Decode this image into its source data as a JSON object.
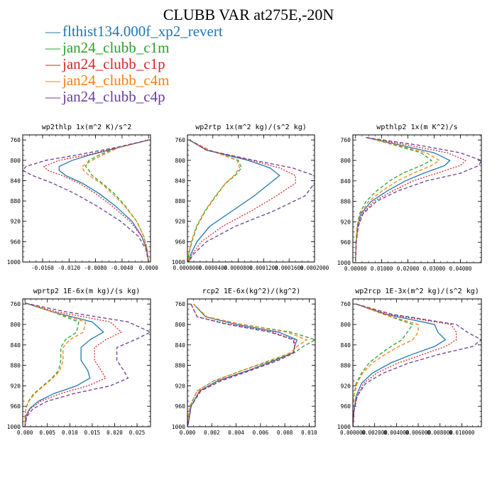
{
  "title": "CLUBB VAR at275E,-20N",
  "colors": {
    "frame": "#000000",
    "background": "#ffffff"
  },
  "legend": [
    {
      "label": "flthist134.000f_xp2_revert",
      "color": "#1f77b4",
      "dash": "solid"
    },
    {
      "label": "jan24_clubb_c1m",
      "color": "#2ca02c",
      "dash": "dashed"
    },
    {
      "label": "jan24_clubb_c1p",
      "color": "#d62728",
      "dash": "dotted"
    },
    {
      "label": "jan24_clubb_c4m",
      "color": "#ff7f0e",
      "dash": "dashed"
    },
    {
      "label": "jan24_clubb_c4p",
      "color": "#6a3d9a",
      "dash": "dashed"
    }
  ],
  "chart_data": [
    {
      "type": "line",
      "title": "wp2thlp  1x(m^2 K)/s^2",
      "ylim": [
        1000,
        750
      ],
      "yticks": [
        760,
        800,
        840,
        880,
        920,
        960,
        1000
      ],
      "xlim": [
        -0.019,
        0.0003
      ],
      "xticks": [
        -0.016,
        -0.012,
        -0.008,
        -0.004,
        0.0
      ],
      "xtick_labels": [
        "-0.0160",
        "-0.0120",
        "-0.0080",
        "-0.0040",
        "0.0000"
      ],
      "y": [
        760,
        775,
        790,
        800,
        812,
        820,
        830,
        845,
        865,
        890,
        920,
        950,
        975,
        1000
      ],
      "series": [
        {
          "values": [
            0.0,
            -0.0045,
            -0.009,
            -0.0115,
            -0.0135,
            -0.0135,
            -0.0125,
            -0.01,
            -0.0075,
            -0.005,
            -0.0025,
            -0.001,
            -0.0003,
            0.0
          ]
        },
        {
          "values": [
            0.0,
            -0.0048,
            -0.0075,
            -0.009,
            -0.0095,
            -0.009,
            -0.0085,
            -0.007,
            -0.0052,
            -0.0035,
            -0.0018,
            -0.0007,
            -0.0002,
            0.0
          ]
        },
        {
          "values": [
            0.0,
            -0.0046,
            -0.0095,
            -0.0135,
            -0.0158,
            -0.0152,
            -0.013,
            -0.0105,
            -0.008,
            -0.0055,
            -0.0028,
            -0.001,
            -0.0003,
            0.0
          ]
        },
        {
          "values": [
            0.0,
            -0.0045,
            -0.007,
            -0.0085,
            -0.01,
            -0.0098,
            -0.009,
            -0.0072,
            -0.0055,
            -0.0036,
            -0.0018,
            -0.0007,
            -0.0002,
            0.0
          ]
        },
        {
          "values": [
            0.0,
            -0.005,
            -0.011,
            -0.0155,
            -0.0185,
            -0.019,
            -0.0175,
            -0.0145,
            -0.0112,
            -0.0078,
            -0.0042,
            -0.0015,
            -0.0004,
            0.0
          ]
        }
      ]
    },
    {
      "type": "line",
      "title": "wp2rtp  1x(m^2 kg)/(s^2 kg)",
      "ylim": [
        1000,
        750
      ],
      "yticks": [
        760,
        800,
        840,
        880,
        920,
        960,
        1000
      ],
      "xlim": [
        0,
        0.0002
      ],
      "xticks": [
        0.0,
        4e-05,
        8e-05,
        0.00012,
        0.00016,
        0.0002
      ],
      "xtick_labels": [
        "0.0000000",
        "0.0000400",
        "0.0000800",
        "0.0001200",
        "0.0001600",
        "0.0002000"
      ],
      "y": [
        760,
        780,
        800,
        815,
        830,
        845,
        870,
        900,
        930,
        960,
        985,
        1000
      ],
      "series": [
        {
          "values": [
            3e-06,
            3e-05,
            9.5e-05,
            0.00013,
            0.000145,
            0.00013,
            0.000105,
            7e-05,
            3.5e-05,
            1.5e-05,
            5e-06,
            2e-06
          ]
        },
        {
          "values": [
            3e-06,
            3.5e-05,
            8e-05,
            8.5e-05,
            7.5e-05,
            6e-05,
            4.5e-05,
            2.8e-05,
            1.5e-05,
            7e-06,
            2e-06,
            1e-06
          ]
        },
        {
          "values": [
            3e-06,
            3.2e-05,
            0.0001,
            0.000145,
            0.00017,
            0.00017,
            0.00014,
            0.0001,
            5.5e-05,
            2.2e-05,
            7e-06,
            2e-06
          ]
        },
        {
          "values": [
            3e-06,
            3.5e-05,
            7.8e-05,
            8.2e-05,
            7.3e-05,
            6e-05,
            4.4e-05,
            2.7e-05,
            1.4e-05,
            6e-06,
            2e-06,
            1e-06
          ]
        },
        {
          "values": [
            3e-06,
            3e-05,
            0.000105,
            0.000165,
            0.0002,
            0.0002,
            0.000185,
            0.000135,
            7.5e-05,
            3e-05,
            9e-06,
            2e-06
          ]
        }
      ]
    },
    {
      "type": "line",
      "title": "wpthlp2  1x(m K^2)/s",
      "ylim": [
        1000,
        750
      ],
      "yticks": [
        760,
        800,
        840,
        880,
        920,
        960,
        1000
      ],
      "xlim": [
        -0.001,
        0.048
      ],
      "xticks": [
        0.0,
        0.01,
        0.02,
        0.03,
        0.04
      ],
      "xtick_labels": [
        "0.00000",
        "0.01000",
        "0.02000",
        "0.03000",
        "0.04000"
      ],
      "y": [
        755,
        770,
        785,
        800,
        810,
        825,
        840,
        860,
        880,
        905,
        930,
        960,
        1000
      ],
      "series": [
        {
          "values": [
            0.004,
            0.017,
            0.03,
            0.036,
            0.034,
            0.026,
            0.019,
            0.012,
            0.006,
            0.002,
            0.0008,
            0.0002,
            0.0
          ]
        },
        {
          "values": [
            0.004,
            0.015,
            0.025,
            0.029,
            0.025,
            0.018,
            0.013,
            0.008,
            0.004,
            0.0015,
            0.0006,
            0.0002,
            0.0
          ]
        },
        {
          "values": [
            0.004,
            0.02,
            0.035,
            0.042,
            0.04,
            0.031,
            0.022,
            0.014,
            0.007,
            0.0025,
            0.001,
            0.0003,
            0.0
          ]
        },
        {
          "values": [
            0.004,
            0.016,
            0.027,
            0.032,
            0.029,
            0.022,
            0.016,
            0.01,
            0.005,
            0.0018,
            0.0007,
            0.0002,
            0.0
          ]
        },
        {
          "values": [
            0.004,
            0.024,
            0.04,
            0.048,
            0.047,
            0.04,
            0.027,
            0.016,
            0.008,
            0.0028,
            0.001,
            0.0003,
            0.0
          ]
        }
      ]
    },
    {
      "type": "line",
      "title": "wprtp2  1E-6x(m kg)/(s kg)",
      "ylim": [
        1000,
        750
      ],
      "yticks": [
        760,
        800,
        840,
        880,
        920,
        960,
        1000
      ],
      "xlim": [
        -0.0005,
        0.028
      ],
      "xticks": [
        0.0,
        0.005,
        0.01,
        0.015,
        0.02,
        0.025
      ],
      "xtick_labels": [
        "0.000",
        "0.005",
        "0.010",
        "0.015",
        "0.020",
        "0.025"
      ],
      "y": [
        758,
        775,
        795,
        815,
        830,
        845,
        870,
        890,
        905,
        920,
        935,
        950,
        965,
        980,
        1000
      ],
      "series": [
        {
          "values": [
            0.0,
            0.006,
            0.015,
            0.0175,
            0.0145,
            0.0125,
            0.0125,
            0.014,
            0.0145,
            0.0115,
            0.0065,
            0.003,
            0.001,
            0.0002,
            0.0
          ]
        },
        {
          "values": [
            0.0,
            0.006,
            0.012,
            0.0115,
            0.009,
            0.008,
            0.008,
            0.0075,
            0.006,
            0.004,
            0.002,
            0.0008,
            0.0002,
            0.0,
            0.0
          ]
        },
        {
          "values": [
            0.0,
            0.007,
            0.019,
            0.0215,
            0.018,
            0.0155,
            0.0155,
            0.017,
            0.018,
            0.014,
            0.008,
            0.0035,
            0.0012,
            0.0003,
            0.0
          ]
        },
        {
          "values": [
            0.0,
            0.006,
            0.0135,
            0.013,
            0.01,
            0.0085,
            0.0085,
            0.0078,
            0.0062,
            0.0042,
            0.0022,
            0.0009,
            0.0002,
            0.0,
            0.0
          ]
        },
        {
          "values": [
            0.0,
            0.009,
            0.023,
            0.028,
            0.0245,
            0.0205,
            0.0205,
            0.022,
            0.023,
            0.019,
            0.011,
            0.005,
            0.0018,
            0.0004,
            0.0
          ]
        }
      ]
    },
    {
      "type": "line",
      "title": "rcp2  1E-6x(kg^2)/(kg^2)",
      "ylim": [
        1000,
        750
      ],
      "yticks": [
        760,
        800,
        840,
        880,
        920,
        960,
        1000
      ],
      "xlim": [
        0,
        0.0105
      ],
      "xticks": [
        0.0,
        0.002,
        0.004,
        0.006,
        0.008,
        0.01
      ],
      "xtick_labels": [
        "0.000",
        "0.002",
        "0.004",
        "0.006",
        "0.008",
        "0.010"
      ],
      "y": [
        760,
        785,
        800,
        815,
        830,
        843,
        855,
        870,
        890,
        910,
        930,
        960,
        990,
        1000
      ],
      "series": [
        {
          "values": [
            0.0005,
            0.0015,
            0.004,
            0.0075,
            0.009,
            0.0088,
            0.0087,
            0.0072,
            0.005,
            0.0025,
            0.001,
            0.0003,
            0.0001,
            0.0
          ]
        },
        {
          "values": [
            0.0005,
            0.0015,
            0.0045,
            0.0085,
            0.0105,
            0.0095,
            0.0088,
            0.007,
            0.0045,
            0.0022,
            0.0008,
            0.0002,
            0.0,
            0.0
          ]
        },
        {
          "values": [
            0.0003,
            0.0008,
            0.0035,
            0.007,
            0.0088,
            0.0088,
            0.0087,
            0.0073,
            0.005,
            0.0026,
            0.001,
            0.0003,
            0.0001,
            0.0
          ]
        },
        {
          "values": [
            0.0005,
            0.0016,
            0.0045,
            0.0082,
            0.0098,
            0.009,
            0.0085,
            0.0068,
            0.0045,
            0.0022,
            0.0008,
            0.0002,
            0.0,
            0.0
          ]
        },
        {
          "values": [
            0.0003,
            0.0008,
            0.0033,
            0.0068,
            0.0087,
            0.0088,
            0.0088,
            0.0075,
            0.0052,
            0.0028,
            0.0011,
            0.0003,
            0.0001,
            0.0
          ]
        }
      ]
    },
    {
      "type": "line",
      "title": "wp2rcp  1E-3x(m^2 kg)/(s^2 kg)",
      "ylim": [
        1000,
        750
      ],
      "yticks": [
        760,
        800,
        840,
        880,
        920,
        960,
        1000
      ],
      "xlim": [
        0,
        0.0118
      ],
      "xticks": [
        0.0,
        0.002,
        0.004,
        0.006,
        0.008,
        0.01
      ],
      "xtick_labels": [
        "0.000000",
        "0.002000",
        "0.004000",
        "0.006000",
        "0.008000",
        "0.010000"
      ],
      "y": [
        760,
        780,
        800,
        815,
        830,
        843,
        858,
        875,
        895,
        915,
        940,
        970,
        1000
      ],
      "series": [
        {
          "values": [
            0.0003,
            0.003,
            0.0075,
            0.0078,
            0.0085,
            0.0075,
            0.0055,
            0.0035,
            0.0018,
            0.0008,
            0.0003,
            0.0001,
            0.0
          ]
        },
        {
          "values": [
            0.0003,
            0.0028,
            0.0055,
            0.005,
            0.0045,
            0.0035,
            0.0025,
            0.0015,
            0.0008,
            0.0003,
            0.0001,
            0.0,
            0.0
          ]
        },
        {
          "values": [
            0.0003,
            0.0032,
            0.009,
            0.0095,
            0.0095,
            0.0085,
            0.0065,
            0.0042,
            0.0022,
            0.001,
            0.0004,
            0.0001,
            0.0
          ]
        },
        {
          "values": [
            0.0003,
            0.0028,
            0.006,
            0.006,
            0.0055,
            0.0042,
            0.003,
            0.0018,
            0.0009,
            0.0004,
            0.0001,
            0.0,
            0.0
          ]
        },
        {
          "values": [
            0.0003,
            0.0036,
            0.0095,
            0.0105,
            0.0118,
            0.011,
            0.008,
            0.0052,
            0.0028,
            0.0012,
            0.0004,
            0.0001,
            0.0
          ]
        }
      ]
    }
  ]
}
